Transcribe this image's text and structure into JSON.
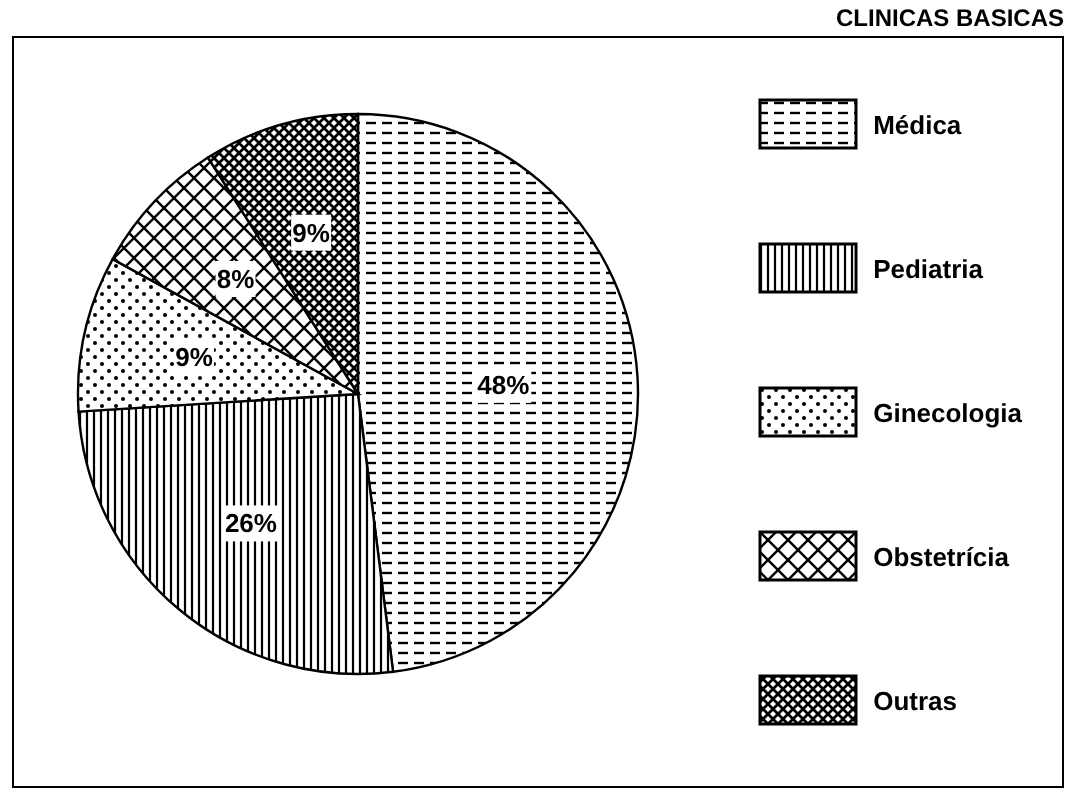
{
  "chart_data": {
    "type": "pie",
    "title": "CLINICAS BASICAS",
    "categories": [
      "Médica",
      "Pediatria",
      "Ginecologia",
      "Obstetrícia",
      "Outras"
    ],
    "values": [
      48,
      26,
      9,
      8,
      9
    ],
    "value_labels": [
      "48%",
      "26%",
      "9%",
      "8%",
      "9%"
    ],
    "colors": [
      "#000000",
      "#000000",
      "#000000",
      "#000000",
      "#000000"
    ],
    "legend": "right"
  }
}
